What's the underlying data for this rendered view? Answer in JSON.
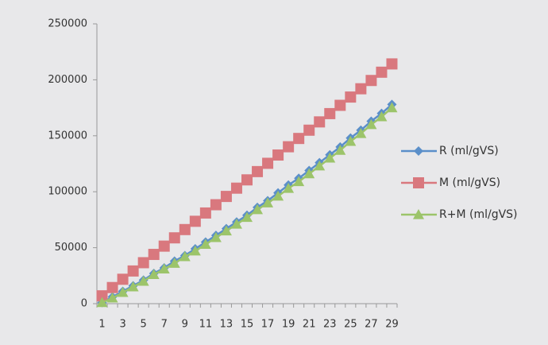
{
  "chart_data": {
    "type": "line",
    "categories": [
      1,
      null,
      3,
      null,
      5,
      null,
      7,
      null,
      9,
      null,
      11,
      null,
      13,
      null,
      15,
      null,
      17,
      null,
      19,
      null,
      21,
      null,
      23,
      null,
      25,
      null,
      27,
      null,
      29
    ],
    "series": [
      {
        "name": "R (ml/gVS)",
        "color": "#5b8fc9",
        "marker": "diamond",
        "values": [
          1000,
          6000,
          11000,
          16000,
          21000,
          27000,
          32000,
          38000,
          43000,
          49000,
          55000,
          61000,
          67000,
          73000,
          79000,
          86000,
          92000,
          99000,
          106000,
          112000,
          119000,
          126000,
          133000,
          140000,
          148000,
          155000,
          163000,
          170000,
          178000
        ]
      },
      {
        "name": "M (ml/gVS)",
        "color": "#d9787e",
        "marker": "square",
        "values": [
          7000,
          14400,
          21800,
          29200,
          36600,
          44000,
          51400,
          58800,
          66200,
          73600,
          81000,
          88400,
          95800,
          103200,
          110600,
          118000,
          125400,
          132800,
          140200,
          147600,
          155000,
          162400,
          169800,
          177200,
          184600,
          192000,
          199400,
          206800,
          214200
        ]
      },
      {
        "name": "R+M (ml/gVS)",
        "color": "#9cc46a",
        "marker": "triangle",
        "values": [
          1000,
          5000,
          10000,
          15000,
          20000,
          26000,
          31000,
          36000,
          42000,
          47000,
          53000,
          59000,
          65000,
          71000,
          77000,
          84000,
          90000,
          96000,
          103000,
          109000,
          116000,
          123000,
          130000,
          137000,
          145000,
          152000,
          160000,
          167000,
          175000
        ]
      }
    ],
    "ylim": [
      0,
      250000
    ],
    "yticks": [
      0,
      50000,
      100000,
      150000,
      200000,
      250000
    ],
    "grid": false
  }
}
